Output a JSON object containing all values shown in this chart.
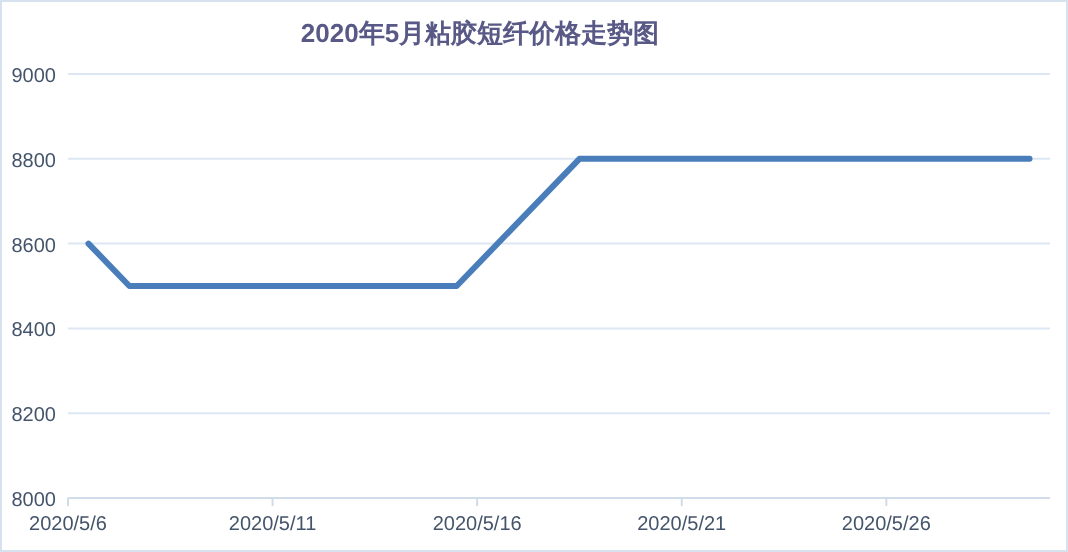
{
  "chart_data": {
    "type": "line",
    "title": "2020年5月粘胶短纤价格走势图",
    "x": [
      "2020-05-06",
      "2020-05-07",
      "2020-05-08",
      "2020-05-09",
      "2020-05-10",
      "2020-05-11",
      "2020-05-12",
      "2020-05-13",
      "2020-05-14",
      "2020-05-15",
      "2020-05-18",
      "2020-05-19",
      "2020-05-20",
      "2020-05-21",
      "2020-05-22",
      "2020-05-23",
      "2020-05-24",
      "2020-05-25",
      "2020-05-26",
      "2020-05-27",
      "2020-05-28",
      "2020-05-29"
    ],
    "series": [
      {
        "color": "#4a7ebb",
        "values": [
          8600,
          8500,
          8500,
          8500,
          8500,
          8500,
          8500,
          8500,
          8500,
          8500,
          8800,
          8800,
          8800,
          8800,
          8800,
          8800,
          8800,
          8800,
          8800,
          8800,
          8800,
          8800
        ]
      }
    ],
    "xlim": [
      "2020-05-05T12:00",
      "2020-05-29T12:00"
    ],
    "xticks": [
      {
        "value": "2020-05-05T12:00",
        "label": "2020/5/6"
      },
      {
        "value": "2020-05-10T12:00",
        "label": "2020/5/11"
      },
      {
        "value": "2020-05-15T12:00",
        "label": "2020/5/16"
      },
      {
        "value": "2020-05-20T12:00",
        "label": "2020/5/21"
      },
      {
        "value": "2020-05-25T12:00",
        "label": "2020/5/26"
      }
    ],
    "ylim": [
      8000,
      9000
    ],
    "yticks": [
      8000,
      8200,
      8400,
      8600,
      8800,
      9000
    ],
    "grid": "y",
    "marker": "none",
    "line_style": "solid"
  }
}
